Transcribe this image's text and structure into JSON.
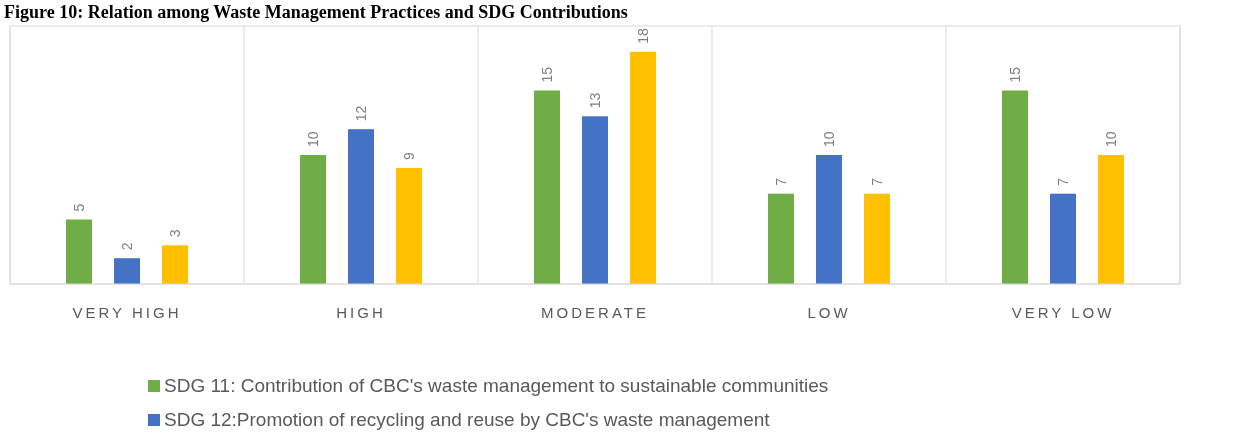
{
  "chart_data": {
    "type": "bar",
    "title": "Figure 10: Relation among Waste Management Practices and SDG Contributions",
    "categories": [
      "VERY HIGH",
      "HIGH",
      "MODERATE",
      "LOW",
      "VERY LOW"
    ],
    "series": [
      {
        "name": "SDG 11: Contribution of CBC's waste management to sustainable communities",
        "color": "#70ad47",
        "values": [
          5,
          10,
          15,
          7,
          15
        ]
      },
      {
        "name": "SDG 12:Promotion of recycling and reuse by CBC's waste management",
        "color": "#4472c4",
        "values": [
          2,
          12,
          13,
          10,
          7
        ]
      },
      {
        "color": "#ffc000",
        "values": [
          3,
          9,
          18,
          7,
          10
        ]
      }
    ],
    "ylim": [
      0,
      20
    ],
    "tick_labels": "x",
    "grid": "x",
    "data_labels": true,
    "legend": "bottom"
  }
}
